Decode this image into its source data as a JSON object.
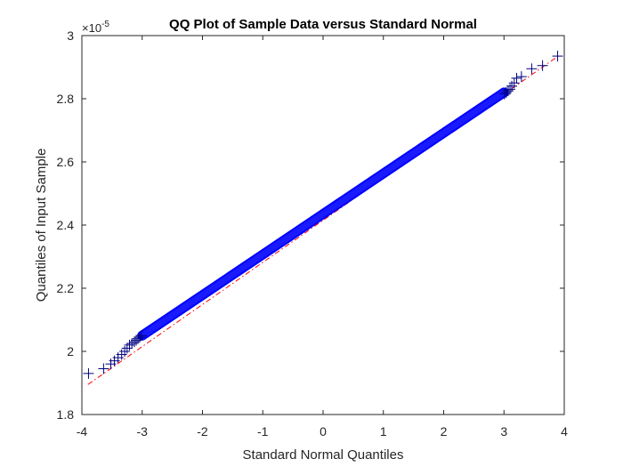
{
  "chart_data": {
    "type": "scatter",
    "title": "QQ Plot of Sample Data versus Standard Normal",
    "xlabel": "Standard Normal Quantiles",
    "ylabel": "Quantiles of Input Sample",
    "y_exponent_prefix": "×10",
    "y_exponent_power": "-5",
    "xlim": [
      -4,
      4
    ],
    "ylim": [
      1.8,
      3.0
    ],
    "y_scale_factor": 1e-05,
    "x_ticks": [
      "-4",
      "-3",
      "-2",
      "-1",
      "0",
      "1",
      "2",
      "3",
      "4"
    ],
    "y_ticks": [
      "1.8",
      "2",
      "2.2",
      "2.4",
      "2.6",
      "2.8",
      "3"
    ],
    "grid": false,
    "reference_line": {
      "style": "dash-dot",
      "color": "#ff0000",
      "x": [
        -3.9,
        3.9
      ],
      "y": [
        1.895,
        2.935
      ]
    },
    "series": [
      {
        "marker": "+",
        "color": "#0000ff",
        "edge_color": "#000080",
        "x": [
          -3.89,
          -3.64,
          -3.52,
          -3.46,
          -3.4,
          -3.34,
          -3.29,
          -3.25,
          -3.21,
          -3.17,
          -3.13,
          -3.1,
          -3.07,
          -3.04,
          -3.01,
          3.01,
          3.04,
          3.07,
          3.1,
          3.13,
          3.17,
          3.21,
          3.29,
          3.46,
          3.64,
          3.89
        ],
        "y": [
          1.93,
          1.945,
          1.96,
          1.97,
          1.98,
          1.99,
          2.0,
          2.01,
          2.02,
          2.025,
          2.03,
          2.035,
          2.04,
          2.045,
          2.05,
          2.815,
          2.82,
          2.825,
          2.83,
          2.84,
          2.85,
          2.865,
          2.87,
          2.895,
          2.905,
          2.935
        ]
      }
    ],
    "dense_band": {
      "x_range": [
        -3.0,
        3.0
      ],
      "y_range": [
        2.05,
        2.82
      ]
    }
  }
}
